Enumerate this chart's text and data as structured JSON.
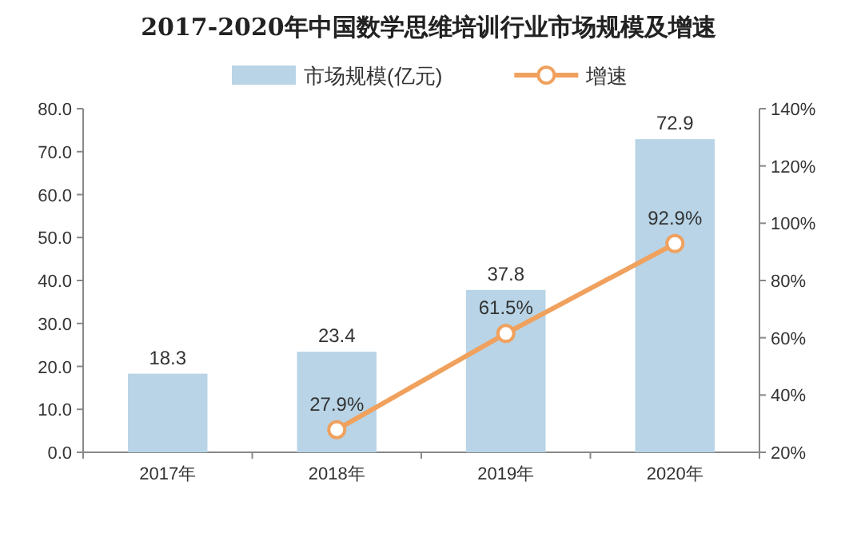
{
  "chart_data": {
    "type": "bar",
    "title": "2017-2020年中国数学思维培训行业市场规模及增速",
    "categories": [
      "2017年",
      "2018年",
      "2019年",
      "2020年"
    ],
    "series": [
      {
        "name": "市场规模(亿元)",
        "color": "#b8d4e6",
        "values": [
          18.3,
          23.4,
          37.8,
          72.9
        ],
        "value_labels": [
          "18.3",
          "23.4",
          "37.8",
          "72.9"
        ]
      },
      {
        "name": "增速",
        "type": "line",
        "axis": "y2",
        "color": "#f0a15e",
        "marker": "circle",
        "values": [
          null,
          27.9,
          61.5,
          92.9
        ],
        "value_labels": [
          null,
          "27.9%",
          "61.5%",
          "92.9%"
        ]
      }
    ],
    "ylim": [
      0,
      80
    ],
    "yticks": [
      {
        "value": 0,
        "label": "0.0"
      },
      {
        "value": 10,
        "label": "10.0"
      },
      {
        "value": 20,
        "label": "20.0"
      },
      {
        "value": 30,
        "label": "30.0"
      },
      {
        "value": 40,
        "label": "40.0"
      },
      {
        "value": 50,
        "label": "50.0"
      },
      {
        "value": 60,
        "label": "60.0"
      },
      {
        "value": 70,
        "label": "70.0"
      },
      {
        "value": 80,
        "label": "80.0"
      }
    ],
    "y2lim": [
      20,
      140
    ],
    "y2ticks": [
      {
        "value": 20,
        "label": "20%"
      },
      {
        "value": 40,
        "label": "40%"
      },
      {
        "value": 60,
        "label": "60%"
      },
      {
        "value": 80,
        "label": "80%"
      },
      {
        "value": 100,
        "label": "100%"
      },
      {
        "value": 120,
        "label": "120%"
      },
      {
        "value": 140,
        "label": "140%"
      }
    ],
    "grid": false,
    "legend": "top"
  }
}
